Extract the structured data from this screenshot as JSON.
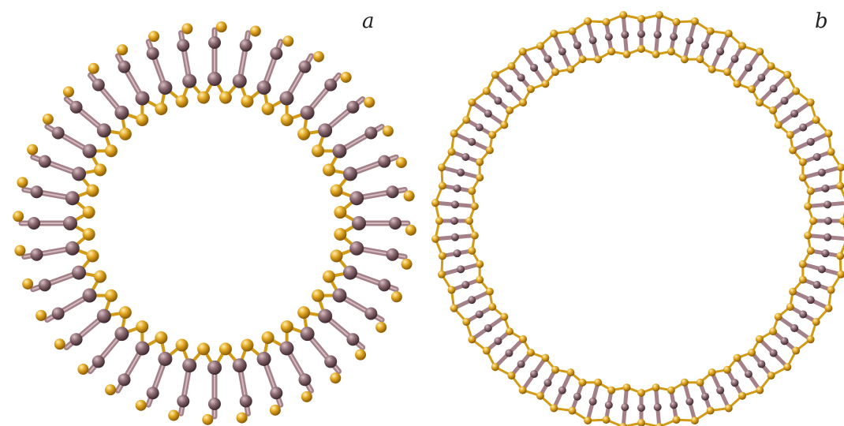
{
  "panels": [
    {
      "label": "a",
      "type": "radial-tube"
    },
    {
      "label": "b",
      "type": "wall-tube"
    }
  ],
  "colors": {
    "metal_atom": "#8c6c73",
    "metal_bond": "#a48189",
    "chalcogen_atom": "#e0a623",
    "chalcogen_bond": "#d19b17"
  }
}
